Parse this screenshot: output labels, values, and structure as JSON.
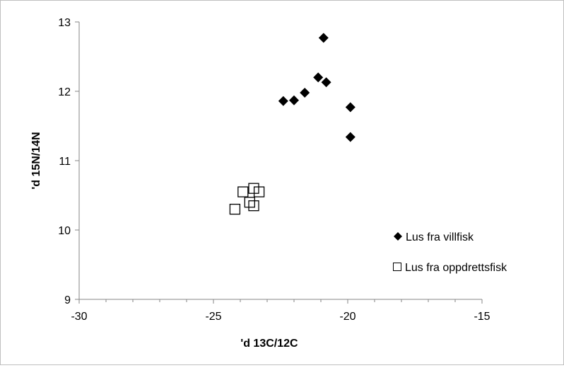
{
  "chart_data": {
    "type": "scatter",
    "title": "",
    "xlabel": "'d 13C/12C",
    "ylabel": "'d 15N/14N",
    "xlim": [
      -30,
      -15
    ],
    "ylim": [
      9,
      13
    ],
    "x_ticks": [
      -30,
      -25,
      -20,
      -15
    ],
    "y_ticks": [
      9,
      10,
      11,
      12,
      13
    ],
    "x_tick_labels": [
      "-30",
      "-25",
      "-20",
      "-15"
    ],
    "y_tick_labels": [
      "9",
      "10",
      "11",
      "12",
      "13"
    ],
    "grid": false,
    "legend_position": "right",
    "series": [
      {
        "name": "Lus fra villfisk",
        "marker": "filled-diamond",
        "color": "#000000",
        "points": [
          {
            "x": -22.4,
            "y": 11.86
          },
          {
            "x": -22.0,
            "y": 11.87
          },
          {
            "x": -21.6,
            "y": 11.98
          },
          {
            "x": -21.1,
            "y": 12.2
          },
          {
            "x": -20.8,
            "y": 12.13
          },
          {
            "x": -20.9,
            "y": 12.77
          },
          {
            "x": -19.9,
            "y": 11.77
          },
          {
            "x": -19.9,
            "y": 11.34
          }
        ]
      },
      {
        "name": "Lus fra oppdrettsfisk",
        "marker": "open-square",
        "color": "#000000",
        "points": [
          {
            "x": -24.2,
            "y": 10.3
          },
          {
            "x": -23.9,
            "y": 10.55
          },
          {
            "x": -23.65,
            "y": 10.4
          },
          {
            "x": -23.5,
            "y": 10.6
          },
          {
            "x": -23.5,
            "y": 10.35
          },
          {
            "x": -23.3,
            "y": 10.55
          }
        ]
      }
    ]
  }
}
